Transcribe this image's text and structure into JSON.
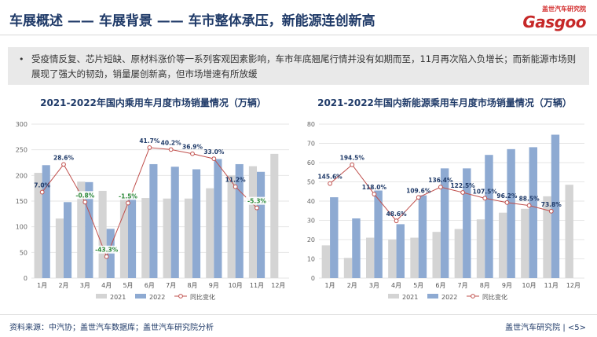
{
  "page_title": "车展概述 —— 车展背景 —— 车市整体承压，新能源连创新高",
  "logo": {
    "top_text": "盖世汽车研究院",
    "main_text": "Gasgoo"
  },
  "summary": {
    "bullet": "•",
    "text": "受疫情反复、芯片短缺、原材料涨价等一系列客观因素影响，车市年底翘尾行情并没有如期而至，11月再次陷入负增长；而新能源市场则展现了强大的韧劲，销量屡创新高，但市场增速有所放缓"
  },
  "footer": {
    "source": "资料来源：中汽协；盖世汽车数据库；盖世汽车研究院分析",
    "org": "盖世汽车研究院 | <5>"
  },
  "colors": {
    "bar2021": "#d4d4d4",
    "bar2022": "#8eaad2",
    "line": "#c0504d",
    "label": "#1f3a68"
  },
  "chart_data": [
    {
      "type": "bar",
      "title": "2021-2022年国内乘用车月度市场销量情况（万辆）",
      "categories": [
        "1月",
        "2月",
        "3月",
        "4月",
        "5月",
        "6月",
        "7月",
        "8月",
        "9月",
        "10月",
        "11月",
        "12月"
      ],
      "ylim": [
        0,
        300
      ],
      "yticks": [
        0,
        50,
        100,
        150,
        200,
        250,
        300
      ],
      "series": [
        {
          "name": "2021",
          "values": [
            205,
            116,
            188,
            170,
            165,
            156,
            155,
            155,
            175,
            200,
            218,
            242
          ]
        },
        {
          "name": "2022",
          "values": [
            220,
            148,
            187,
            96,
            162,
            222,
            217,
            212,
            232,
            222,
            207,
            null
          ]
        }
      ],
      "line": {
        "name": "同比变化",
        "ylim": [
          -60,
          60
        ],
        "values": [
          7.0,
          28.6,
          -0.8,
          -43.3,
          -1.5,
          41.7,
          40.2,
          36.9,
          33.0,
          11.2,
          -5.3,
          null
        ],
        "labels": [
          "7.0%",
          "28.6%",
          "-0.8%",
          "-43.3%",
          "-1.5%",
          "41.7%",
          "40.2%",
          "36.9%",
          "33.0%",
          "11.2%",
          "-5.3%",
          ""
        ]
      },
      "legend": [
        "2021",
        "2022",
        "同比变化"
      ]
    },
    {
      "type": "bar",
      "title": "2021-2022年国内新能源乘用车月度市场销量情况（万辆）",
      "categories": [
        "1月",
        "2月",
        "3月",
        "4月",
        "5月",
        "6月",
        "7月",
        "8月",
        "9月",
        "10月",
        "11月",
        "12月"
      ],
      "ylim": [
        0,
        80
      ],
      "yticks": [
        0,
        10,
        20,
        30,
        40,
        50,
        60,
        70,
        80
      ],
      "series": [
        {
          "name": "2021",
          "values": [
            17,
            10.5,
            21,
            20,
            21,
            24,
            25.5,
            30.5,
            34,
            36,
            42.5,
            48.5
          ]
        },
        {
          "name": "2022",
          "values": [
            42,
            31,
            45.5,
            28,
            43,
            57,
            57,
            64,
            67,
            68,
            74.5,
            null
          ]
        }
      ],
      "line": {
        "name": "同比变化",
        "ylim": [
          -100,
          300
        ],
        "values": [
          145.6,
          194.5,
          118.0,
          48.6,
          109.6,
          136.4,
          122.5,
          107.5,
          96.2,
          88.5,
          73.8,
          null
        ],
        "labels": [
          "145.6%",
          "194.5%",
          "118.0%",
          "48.6%",
          "109.6%",
          "136.4%",
          "122.5%",
          "107.5%",
          "96.2%",
          "88.5%",
          "73.8%",
          ""
        ]
      },
      "legend": [
        "2021",
        "2022",
        "同比变化"
      ]
    }
  ]
}
